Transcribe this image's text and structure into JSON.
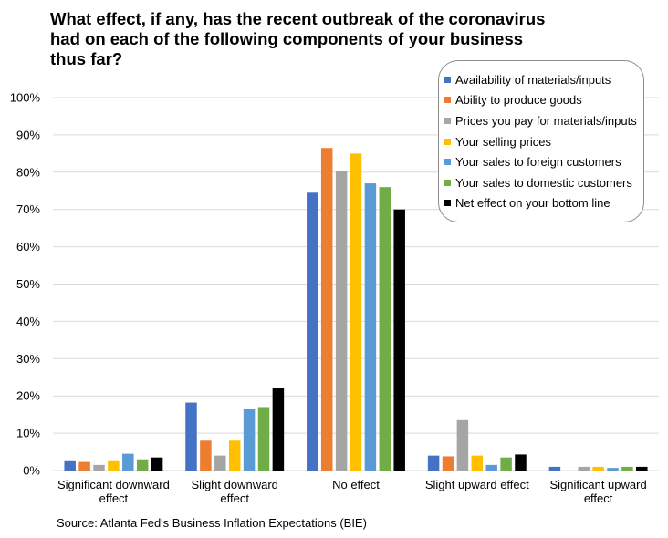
{
  "chart_data": {
    "type": "bar",
    "title": "What effect, if any, has the recent outbreak of the coronavirus had on each of the following components of your business thus far?",
    "source": "Source: Atlanta Fed's Business Inflation Expectations (BIE)",
    "categories": [
      [
        "Significant downward",
        "effect"
      ],
      [
        "Slight downward",
        "effect"
      ],
      [
        "No effect"
      ],
      [
        "Slight upward effect"
      ],
      [
        "Significant upward",
        "effect"
      ]
    ],
    "ylim": [
      0,
      100
    ],
    "yticks": [
      0,
      10,
      20,
      30,
      40,
      50,
      60,
      70,
      80,
      90,
      100
    ],
    "ytick_labels": [
      "0%",
      "10%",
      "20%",
      "30%",
      "40%",
      "50%",
      "60%",
      "70%",
      "80%",
      "90%",
      "100%"
    ],
    "legend_position": "top-right",
    "grid": true,
    "series": [
      {
        "name": "Availability of materials/inputs",
        "color": "#4472C4",
        "values": [
          2.5,
          18.2,
          74.5,
          4.0,
          1.0
        ]
      },
      {
        "name": "Ability to produce goods",
        "color": "#ED7D31",
        "values": [
          2.3,
          8.0,
          86.5,
          3.8,
          0.0
        ]
      },
      {
        "name": "Prices you pay for materials/inputs",
        "color": "#A5A5A5",
        "values": [
          1.5,
          4.0,
          80.3,
          13.5,
          1.0
        ]
      },
      {
        "name": "Your selling prices",
        "color": "#FFC000",
        "values": [
          2.5,
          8.0,
          85.0,
          4.0,
          1.0
        ]
      },
      {
        "name": "Your sales to foreign customers",
        "color": "#5B9BD5",
        "values": [
          4.5,
          16.5,
          77.0,
          1.5,
          0.7
        ]
      },
      {
        "name": "Your sales to domestic customers",
        "color": "#70AD47",
        "values": [
          3.0,
          17.0,
          76.0,
          3.5,
          1.0
        ]
      },
      {
        "name": "Net effect on your bottom line",
        "color": "#000000",
        "values": [
          3.5,
          22.0,
          70.0,
          4.3,
          1.0
        ]
      }
    ]
  }
}
